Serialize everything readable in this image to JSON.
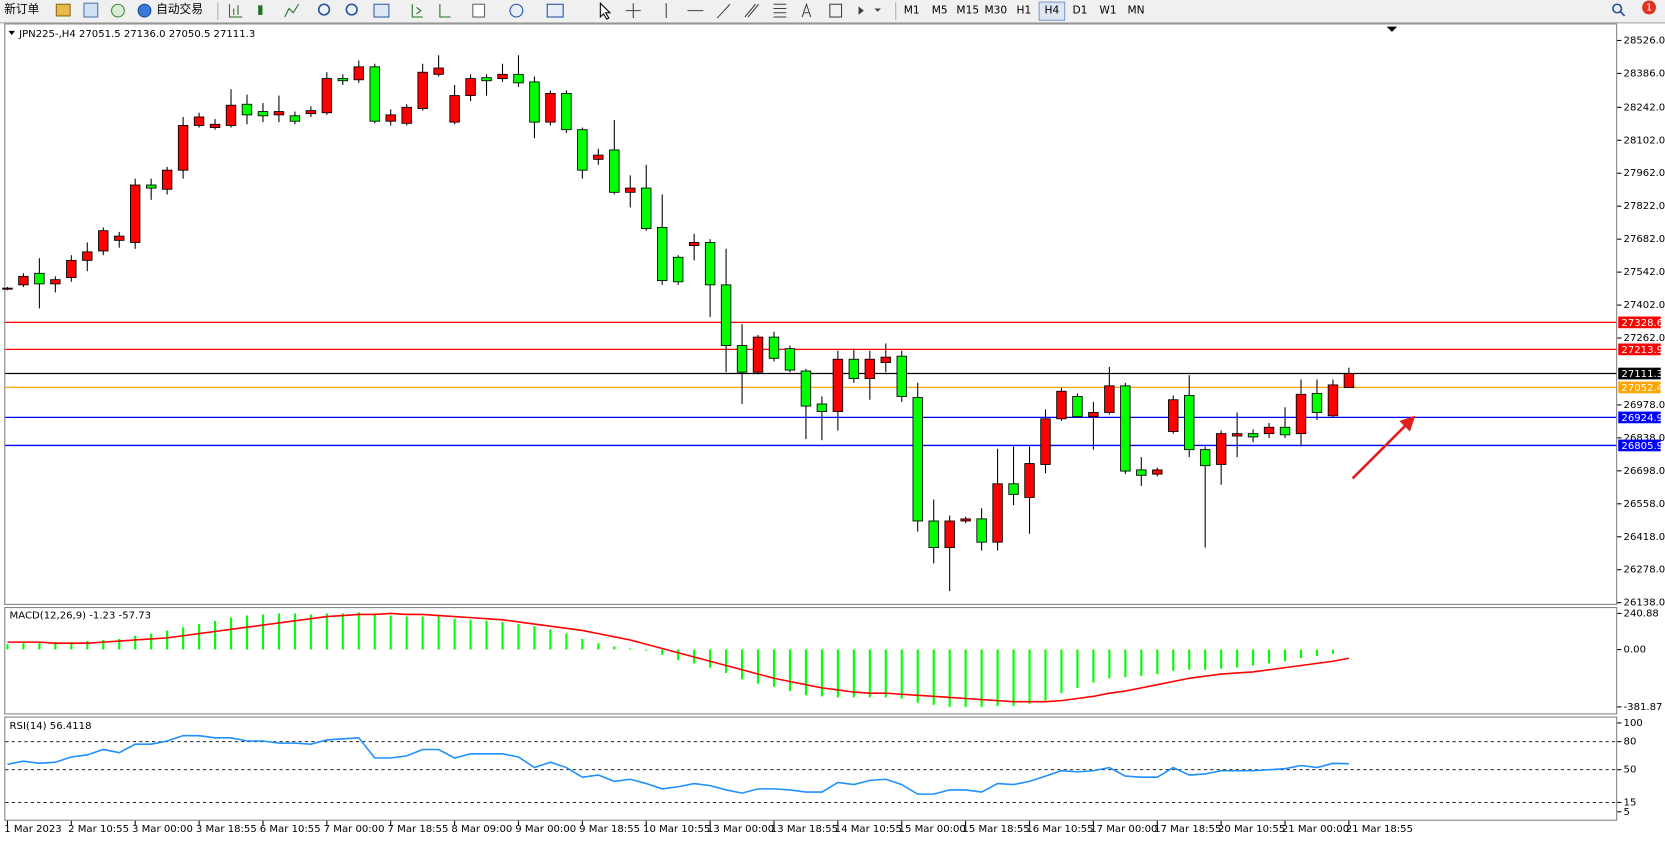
{
  "toolbar": {
    "new_order": "新订单",
    "auto_trading": "自动交易",
    "timeframes": [
      "M1",
      "M5",
      "M15",
      "M30",
      "H1",
      "H4",
      "D1",
      "W1",
      "MN"
    ],
    "active_timeframe": "H4",
    "notifications": 1
  },
  "chart_data": [
    {
      "type": "candlestick",
      "title": "JPN225-,H4  27051.5 27136.0 27050.5 27111.3",
      "categories": [
        "1 Mar 2023",
        null,
        null,
        null,
        "2 Mar 10:55",
        null,
        null,
        null,
        "3 Mar 00:00",
        null,
        null,
        null,
        "3 Mar 18:55",
        null,
        null,
        null,
        "6 Mar 10:55",
        null,
        null,
        null,
        "7 Mar 00:00",
        null,
        null,
        null,
        "7 Mar 18:55",
        null,
        null,
        null,
        "8 Mar 09:00",
        null,
        null,
        null,
        "9 Mar 00:00",
        null,
        null,
        null,
        "9 Mar 18:55",
        null,
        null,
        null,
        "10 Mar 10:55",
        null,
        null,
        null,
        "13 Mar 00:00",
        null,
        null,
        null,
        "13 Mar 18:55",
        null,
        null,
        null,
        "14 Mar 10:55",
        null,
        null,
        null,
        "15 Mar 00:00",
        null,
        null,
        null,
        "15 Mar 18:55",
        null,
        null,
        null,
        "16 Mar 10:55",
        null,
        null,
        null,
        "17 Mar 00:00",
        null,
        null,
        null,
        "17 Mar 18:55",
        null,
        null,
        null,
        "20 Mar 10:55",
        null,
        null,
        null,
        "21 Mar 00:00",
        null,
        null,
        null,
        "21 Mar 18:55"
      ],
      "open": [
        27470,
        27488,
        27537,
        27492,
        27519,
        27592,
        27632,
        27677,
        27668,
        27912,
        27894,
        27975,
        28165,
        28156,
        28165,
        28255,
        28224,
        28210,
        28206,
        28215,
        28219,
        28364,
        28359,
        28414,
        28183,
        28174,
        28237,
        28382,
        28179,
        28292,
        28368,
        28364,
        28382,
        28350,
        28179,
        28301,
        28147,
        28021,
        28061,
        27881,
        27899,
        27732,
        27605,
        27655,
        27668,
        27488,
        27230,
        27117,
        27266,
        27217,
        27122,
        26982,
        26950,
        27172,
        27090,
        27158,
        27185,
        27009,
        26485,
        26372,
        26485,
        26494,
        26395,
        26643,
        26585,
        26725,
        26919,
        27014,
        26928,
        26946,
        27059,
        26702,
        26684,
        26865,
        27018,
        26788,
        26725,
        26846,
        26856,
        26856,
        26883,
        26856,
        27027,
        26932,
        27051.5
      ],
      "high": [
        27479,
        27537,
        27601,
        27524,
        27614,
        27668,
        27732,
        27713,
        27939,
        27939,
        27989,
        28201,
        28219,
        28192,
        28319,
        28296,
        28260,
        28292,
        28224,
        28246,
        28391,
        28382,
        28441,
        28427,
        28233,
        28255,
        28427,
        28463,
        28337,
        28382,
        28382,
        28427,
        28463,
        28373,
        28314,
        28314,
        28156,
        28066,
        28188,
        27953,
        27998,
        27872,
        27614,
        27705,
        27682,
        27641,
        27321,
        27275,
        27289,
        27230,
        27131,
        27014,
        27208,
        27217,
        27208,
        27239,
        27208,
        27072,
        26576,
        26508,
        26503,
        26539,
        26792,
        26801,
        26801,
        26959,
        27050,
        27027,
        26991,
        27140,
        27072,
        26756,
        26711,
        27018,
        27104,
        26801,
        26869,
        26946,
        26874,
        26901,
        26968,
        27086,
        27086,
        27086,
        27136
      ],
      "low": [
        27465,
        27479,
        27388,
        27456,
        27501,
        27546,
        27614,
        27646,
        27641,
        27849,
        27872,
        27939,
        28156,
        28147,
        28156,
        28170,
        28179,
        28179,
        28170,
        28201,
        28210,
        28337,
        28346,
        28174,
        28165,
        28165,
        28228,
        28373,
        28170,
        28269,
        28292,
        28350,
        28328,
        28111,
        28165,
        28133,
        27939,
        27998,
        27872,
        27817,
        27718,
        27488,
        27488,
        27592,
        27352,
        27117,
        26982,
        27108,
        27163,
        27117,
        26833,
        26828,
        26869,
        27072,
        27000,
        27117,
        26991,
        26440,
        26305,
        26187,
        26476,
        26359,
        26359,
        26553,
        26431,
        26688,
        26910,
        26923,
        26788,
        26937,
        26684,
        26634,
        26675,
        26856,
        26756,
        26372,
        26639,
        26756,
        26819,
        26837,
        26837,
        26801,
        26914,
        26923,
        27050.5
      ],
      "close": [
        27474,
        27524,
        27492,
        27510,
        27592,
        27628,
        27718,
        27695,
        27912,
        27899,
        27975,
        28165,
        28201,
        28170,
        28251,
        28210,
        28206,
        28224,
        28183,
        28228,
        28364,
        28355,
        28414,
        28183,
        28210,
        28242,
        28391,
        28409,
        28292,
        28364,
        28355,
        28382,
        28346,
        28179,
        28301,
        28147,
        27975,
        28039,
        27881,
        27899,
        27727,
        27506,
        27501,
        27668,
        27488,
        27230,
        27117,
        27266,
        27176,
        27126,
        26973,
        26950,
        27172,
        27090,
        27172,
        27181,
        27014,
        26485,
        26372,
        26485,
        26494,
        26395,
        26643,
        26598,
        26729,
        26919,
        27036,
        26928,
        26946,
        27059,
        26697,
        26679,
        26702,
        27000,
        26788,
        26720,
        26856,
        26856,
        26842,
        26883,
        26851,
        27023,
        26946,
        27063,
        27111.3
      ],
      "up_color": "#ff0000",
      "down_color": "#00ff00",
      "outline_color": "#000000",
      "ylim": [
        26133,
        28594
      ],
      "yticks": [
        {
          "value": 28526,
          "label": "28526.0"
        },
        {
          "value": 28386,
          "label": "28386.0"
        },
        {
          "value": 28242,
          "label": "28242.0"
        },
        {
          "value": 28102,
          "label": "28102.0"
        },
        {
          "value": 27962,
          "label": "27962.0"
        },
        {
          "value": 27822,
          "label": "27822.0"
        },
        {
          "value": 27682,
          "label": "27682.0"
        },
        {
          "value": 27542,
          "label": "27542.0"
        },
        {
          "value": 27402,
          "label": "27402.0"
        },
        {
          "value": 27262,
          "label": "27262.0"
        },
        {
          "value": 26978,
          "label": "26978.0"
        },
        {
          "value": 26838,
          "label": "26838.0"
        },
        {
          "value": 26698,
          "label": "26698.0"
        },
        {
          "value": 26558,
          "label": "26558.0"
        },
        {
          "value": 26418,
          "label": "26418.0"
        },
        {
          "value": 26278,
          "label": "26278.0"
        },
        {
          "value": 26138,
          "label": "26138.0"
        }
      ],
      "levels": [
        {
          "value": 27328.6,
          "color": "#ff0000"
        },
        {
          "value": 27213.9,
          "color": "#ff0000"
        },
        {
          "value": 27111.3,
          "color": "#000000"
        },
        {
          "value": 27052.4,
          "color": "#ffa500"
        },
        {
          "value": 26924.9,
          "color": "#0000ff"
        },
        {
          "value": 26805.9,
          "color": "#0000ff"
        }
      ]
    },
    {
      "type": "macd",
      "title": "MACD(12,26,9) -1.23 -57.73",
      "histogram": [
        35.4,
        42.5,
        42.5,
        49.6,
        49.6,
        56.7,
        63.8,
        70.9,
        92.1,
        106.3,
        127.5,
        148.8,
        170,
        191.3,
        212.6,
        226.7,
        233.8,
        240.9,
        240.9,
        233.8,
        240.9,
        240.9,
        248,
        240.9,
        226.7,
        219.6,
        219.6,
        219.6,
        205.5,
        198.4,
        191.3,
        184.2,
        170,
        155.9,
        134.6,
        106.3,
        70.9,
        42.5,
        21.3,
        7.1,
        -7.1,
        -35.4,
        -70.9,
        -92.1,
        -120.4,
        -155.9,
        -198.4,
        -226.7,
        -248,
        -276.3,
        -304.7,
        -311.7,
        -318.8,
        -318.8,
        -318.8,
        -318.8,
        -325.9,
        -354.3,
        -368.4,
        -382.6,
        -382.6,
        -382.6,
        -375.5,
        -375.5,
        -361.3,
        -340.1,
        -290.5,
        -255.1,
        -219.6,
        -191.3,
        -184.2,
        -177.1,
        -163,
        -141.7,
        -134.6,
        -134.6,
        -127.5,
        -120.4,
        -106.3,
        -92.1,
        -77.9,
        -56.7,
        -42.5,
        -28.3,
        -1.23
      ],
      "signal": [
        49.6,
        49.6,
        49.6,
        42.5,
        42.5,
        42.5,
        49.6,
        56.7,
        63.8,
        70.9,
        77.9,
        92.1,
        106.3,
        120.4,
        134.6,
        148.8,
        163,
        177.1,
        191.3,
        205.5,
        219.6,
        226.7,
        233.8,
        233.8,
        240.9,
        233.8,
        233.8,
        226.7,
        219.6,
        212.6,
        205.5,
        198.4,
        184.2,
        170,
        155.9,
        141.7,
        127.5,
        106.3,
        85,
        63.8,
        35.4,
        7.1,
        -21.3,
        -49.6,
        -77.9,
        -106.3,
        -134.6,
        -163,
        -191.3,
        -212.6,
        -233.8,
        -255.1,
        -269.2,
        -283.4,
        -290.5,
        -290.5,
        -297.6,
        -304.7,
        -311.7,
        -318.8,
        -325.9,
        -333,
        -340.1,
        -347.2,
        -347.2,
        -347.2,
        -340.1,
        -325.9,
        -311.7,
        -290.5,
        -276.3,
        -255.1,
        -233.8,
        -212.6,
        -191.3,
        -177.1,
        -163,
        -155.9,
        -148.8,
        -134.6,
        -120.4,
        -106.3,
        -92.1,
        -77.9,
        -57.73
      ],
      "histogram_color": "#00ff00",
      "signal_color": "#ff0000",
      "ylim": [
        -425,
        269
      ],
      "yticks": [
        240.88,
        {
          "value": 0,
          "label": "0.00"
        },
        -381.87
      ]
    },
    {
      "type": "line",
      "title": "RSI(14) 56.4118",
      "values": [
        55.7,
        59.1,
        56.8,
        58.0,
        63.6,
        65.9,
        71.6,
        68.2,
        77.3,
        77.3,
        80.7,
        86.4,
        86.4,
        84.1,
        84.1,
        80.7,
        80.7,
        78.4,
        78.4,
        77.3,
        81.8,
        83.0,
        84.1,
        62.5,
        62.5,
        64.8,
        71.6,
        71.6,
        62.5,
        67.0,
        67.0,
        67.0,
        63.6,
        52.3,
        58.0,
        52.3,
        42.0,
        44.3,
        37.5,
        39.8,
        35.2,
        29.5,
        31.8,
        35.2,
        33.0,
        28.4,
        25.0,
        29.5,
        29.5,
        28.4,
        26.1,
        26.1,
        36.4,
        34.1,
        38.6,
        39.8,
        34.1,
        23.9,
        23.9,
        28.4,
        28.4,
        26.1,
        35.2,
        34.1,
        37.5,
        43.2,
        48.9,
        47.7,
        48.9,
        52.3,
        43.2,
        42.0,
        42.0,
        52.3,
        44.3,
        45.5,
        48.9,
        48.9,
        48.9,
        50.0,
        51.1,
        54.5,
        52.3,
        56.8,
        56.4118
      ],
      "color": "#1e90ff",
      "ylim": [
        0,
        100
      ],
      "yticks": [
        100,
        80,
        50,
        15,
        5
      ],
      "levels": [
        80,
        50,
        15
      ]
    }
  ]
}
